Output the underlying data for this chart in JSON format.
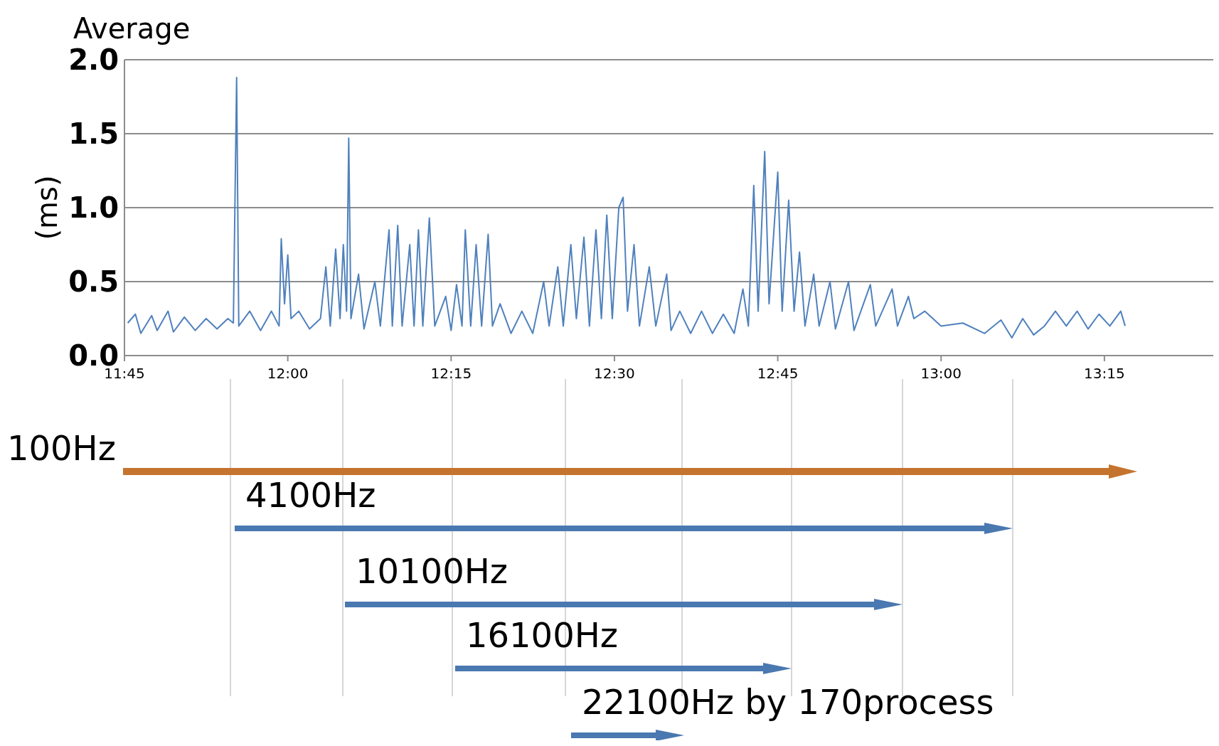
{
  "chart_data": [
    {
      "type": "line",
      "title": "Average",
      "ylabel": "(ms)",
      "xlim": [
        11.75,
        13.4167
      ],
      "xticks": [
        {
          "value": 11.75,
          "label": "11:45"
        },
        {
          "value": 12,
          "label": "12:00"
        },
        {
          "value": 12.25,
          "label": "12:15"
        },
        {
          "value": 12.5,
          "label": "12:30"
        },
        {
          "value": 12.75,
          "label": "12:45"
        },
        {
          "value": 13,
          "label": "13:00"
        },
        {
          "value": 13.25,
          "label": "13:15"
        }
      ],
      "ylim": [
        0,
        2
      ],
      "yticks": [
        {
          "value": 0,
          "label": "0.0"
        },
        {
          "value": 0.5,
          "label": "0.5"
        },
        {
          "value": 1,
          "label": "1.0"
        },
        {
          "value": 1.5,
          "label": "1.5"
        },
        {
          "value": 2,
          "label": "2.0"
        }
      ],
      "grid": "y",
      "series": [
        {
          "color": "#4f81bd",
          "x": [
            11.755,
            11.7667,
            11.775,
            11.7917,
            11.8,
            11.8167,
            11.825,
            11.8417,
            11.8583,
            11.875,
            11.8917,
            11.9083,
            11.9167,
            11.9217,
            11.925,
            11.9417,
            11.9583,
            11.975,
            11.9867,
            11.99,
            11.995,
            12.0,
            12.005,
            12.0167,
            12.0333,
            12.05,
            12.0583,
            12.065,
            12.0733,
            12.08,
            12.085,
            12.09,
            12.0933,
            12.0967,
            12.1083,
            12.1167,
            12.1333,
            12.1417,
            12.155,
            12.16,
            12.1683,
            12.175,
            12.1867,
            12.1933,
            12.2,
            12.2067,
            12.2167,
            12.225,
            12.2417,
            12.25,
            12.2583,
            12.2667,
            12.2717,
            12.28,
            12.2883,
            12.2967,
            12.3067,
            12.3133,
            12.325,
            12.3417,
            12.3583,
            12.375,
            12.3917,
            12.4,
            12.4133,
            12.4217,
            12.4333,
            12.4417,
            12.4533,
            12.4617,
            12.4717,
            12.48,
            12.4883,
            12.4967,
            12.5067,
            12.5133,
            12.52,
            12.53,
            12.5383,
            12.5533,
            12.5633,
            12.58,
            12.5867,
            12.6,
            12.6167,
            12.6333,
            12.65,
            12.6667,
            12.6833,
            12.6967,
            12.705,
            12.7133,
            12.72,
            12.73,
            12.7367,
            12.75,
            12.7567,
            12.7667,
            12.775,
            12.7833,
            12.7917,
            12.805,
            12.8133,
            12.83,
            12.8383,
            12.8583,
            12.8667,
            12.8917,
            12.9,
            12.925,
            12.9333,
            12.95,
            12.9583,
            12.975,
            13.0,
            13.0333,
            13.0667,
            13.0917,
            13.1083,
            13.125,
            13.1417,
            13.1583,
            13.175,
            13.1917,
            13.2083,
            13.225,
            13.2417,
            13.2583,
            13.275,
            13.2817
          ],
          "values": [
            0.22,
            0.28,
            0.15,
            0.27,
            0.17,
            0.3,
            0.16,
            0.26,
            0.17,
            0.25,
            0.18,
            0.25,
            0.22,
            1.88,
            0.2,
            0.3,
            0.17,
            0.3,
            0.2,
            0.79,
            0.35,
            0.68,
            0.25,
            0.3,
            0.18,
            0.25,
            0.6,
            0.2,
            0.72,
            0.25,
            0.75,
            0.3,
            1.47,
            0.25,
            0.55,
            0.18,
            0.5,
            0.2,
            0.85,
            0.2,
            0.88,
            0.2,
            0.75,
            0.2,
            0.85,
            0.2,
            0.93,
            0.2,
            0.4,
            0.17,
            0.48,
            0.2,
            0.85,
            0.2,
            0.75,
            0.2,
            0.82,
            0.2,
            0.35,
            0.15,
            0.3,
            0.15,
            0.5,
            0.2,
            0.6,
            0.2,
            0.75,
            0.25,
            0.8,
            0.2,
            0.85,
            0.25,
            0.95,
            0.25,
            1.0,
            1.07,
            0.3,
            0.75,
            0.2,
            0.6,
            0.2,
            0.55,
            0.17,
            0.3,
            0.15,
            0.3,
            0.15,
            0.28,
            0.15,
            0.45,
            0.2,
            1.15,
            0.3,
            1.38,
            0.35,
            1.24,
            0.3,
            1.05,
            0.3,
            0.7,
            0.2,
            0.55,
            0.2,
            0.5,
            0.18,
            0.5,
            0.17,
            0.48,
            0.2,
            0.45,
            0.2,
            0.4,
            0.25,
            0.3,
            0.2,
            0.22,
            0.15,
            0.24,
            0.12,
            0.25,
            0.14,
            0.2,
            0.3,
            0.2,
            0.3,
            0.18,
            0.28,
            0.2,
            0.3,
            0.2
          ]
        }
      ],
      "annotations": [
        "100Hz",
        "4100Hz",
        "10100Hz",
        "16100Hz",
        "22100Hz by 170process"
      ]
    }
  ]
}
